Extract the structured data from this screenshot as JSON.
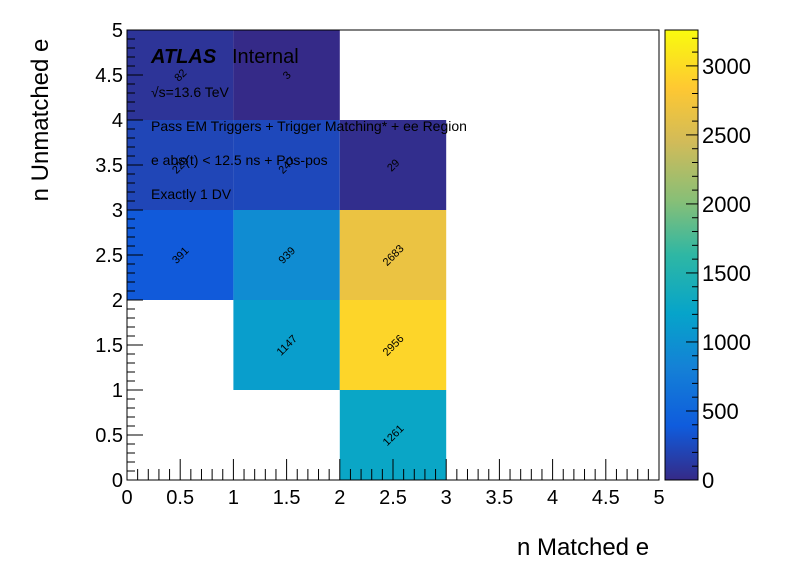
{
  "chart_data": {
    "type": "heatmap",
    "xlabel": "n Matched e",
    "ylabel": "n Unmatched e",
    "xlim": [
      0,
      5
    ],
    "ylim": [
      0,
      5
    ],
    "x_ticks": [
      "0",
      "0.5",
      "1",
      "1.5",
      "2",
      "2.5",
      "3",
      "3.5",
      "4",
      "4.5",
      "5"
    ],
    "y_ticks": [
      "0",
      "0.5",
      "1",
      "1.5",
      "2",
      "2.5",
      "3",
      "3.5",
      "4",
      "4.5",
      "5"
    ],
    "colorbar": {
      "min": 0,
      "max": 3260,
      "ticks": [
        "0",
        "500",
        "1000",
        "1500",
        "2000",
        "2500",
        "3000"
      ],
      "colormap": "parula"
    },
    "cells": [
      {
        "x0": 0,
        "x1": 1,
        "y0": 4,
        "y1": 5,
        "value": 82,
        "label": "82"
      },
      {
        "x0": 1,
        "x1": 2,
        "y0": 4,
        "y1": 5,
        "value": 3,
        "label": "3"
      },
      {
        "x0": 0,
        "x1": 1,
        "y0": 3,
        "y1": 4,
        "value": 229,
        "label": "229"
      },
      {
        "x0": 1,
        "x1": 2,
        "y0": 3,
        "y1": 4,
        "value": 247,
        "label": "247"
      },
      {
        "x0": 2,
        "x1": 3,
        "y0": 3,
        "y1": 4,
        "value": 29,
        "label": "29"
      },
      {
        "x0": 0,
        "x1": 1,
        "y0": 2,
        "y1": 3,
        "value": 391,
        "label": "391"
      },
      {
        "x0": 1,
        "x1": 2,
        "y0": 2,
        "y1": 3,
        "value": 939,
        "label": "939"
      },
      {
        "x0": 2,
        "x1": 3,
        "y0": 2,
        "y1": 3,
        "value": 2683,
        "label": "2683"
      },
      {
        "x0": 1,
        "x1": 2,
        "y0": 1,
        "y1": 2,
        "value": 1147,
        "label": "1147"
      },
      {
        "x0": 2,
        "x1": 3,
        "y0": 1,
        "y1": 2,
        "value": 2956,
        "label": "2956"
      },
      {
        "x0": 2,
        "x1": 3,
        "y0": 0,
        "y1": 1,
        "value": 1261,
        "label": "1261"
      }
    ],
    "annotations": {
      "atlas": "ATLAS",
      "internal": "Internal",
      "energy": "√s=13.6 TeV",
      "line1": "Pass EM Triggers + Trigger Matching* + ee Region",
      "line2": "e abs(t) < 12.5 ns + Pos-pos",
      "line3": "Exactly 1 DV"
    }
  }
}
